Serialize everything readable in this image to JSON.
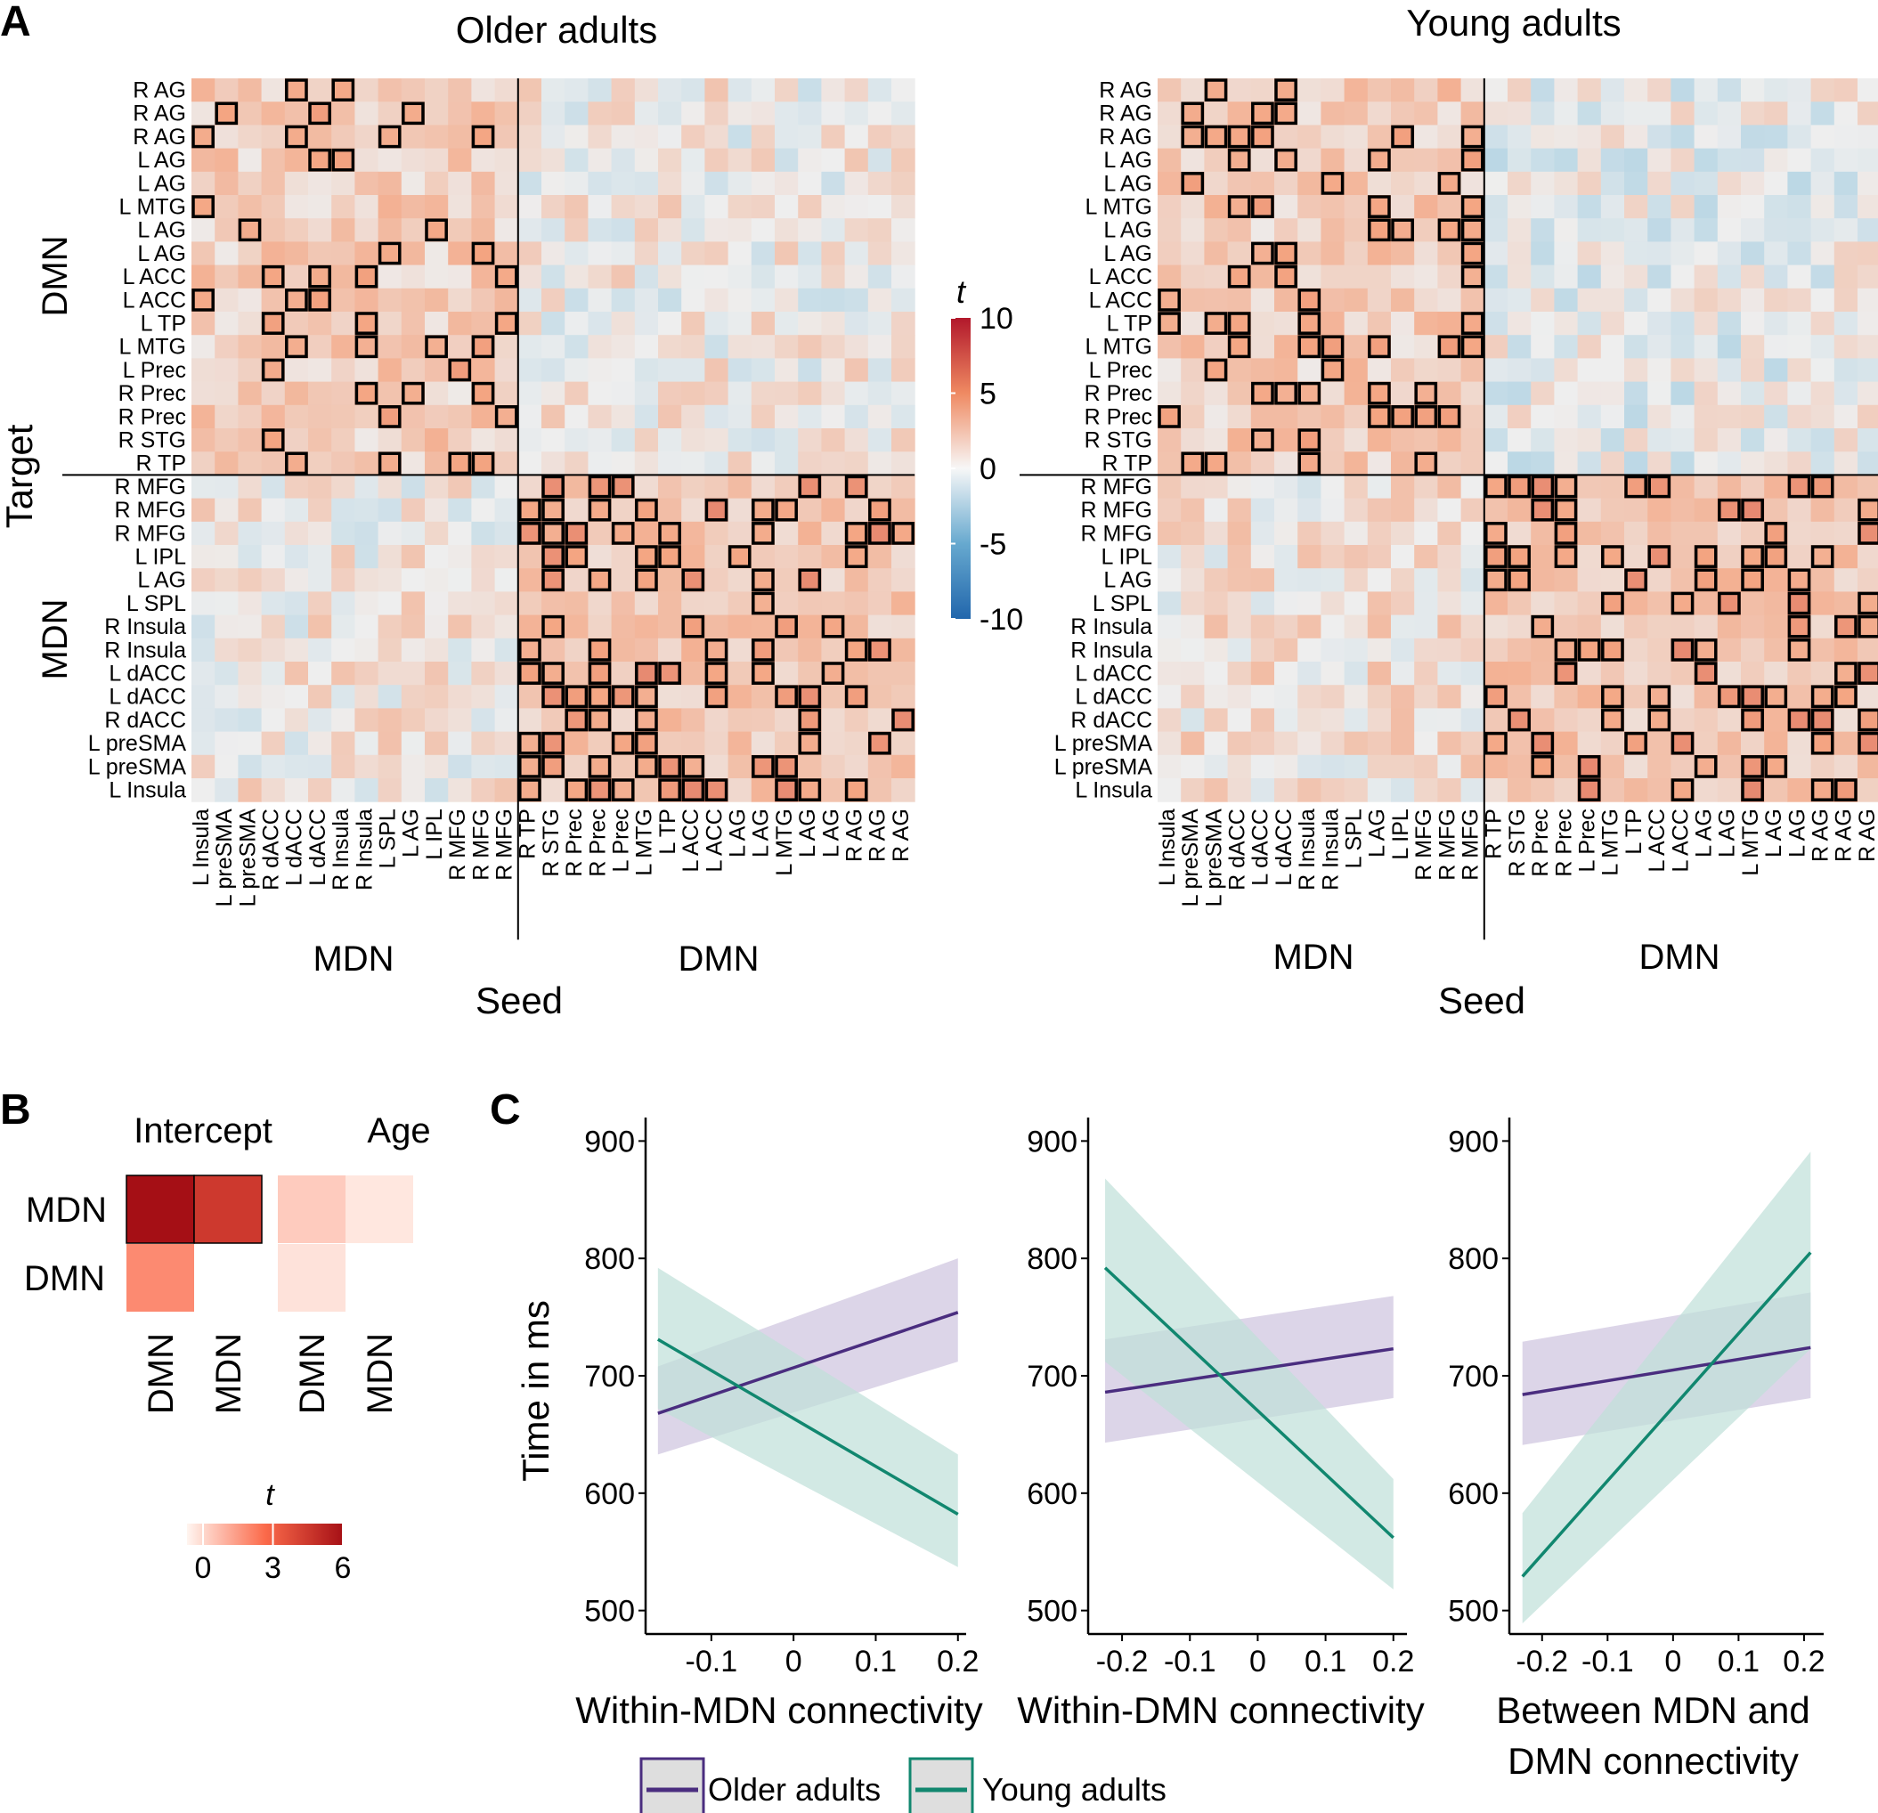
{
  "panel_letters": {
    "a": "A",
    "b": "B",
    "c": "C"
  },
  "colors": {
    "older": "#4a2d7f",
    "young": "#11876f",
    "older_band": "#cdc3de",
    "young_band": "#bfe0d8",
    "neg": "#2d6fb5",
    "neutral": "#dfdfdf",
    "pos": "#b51f27"
  },
  "chart_data": [
    {
      "type": "heatmap",
      "id": "matrix-older",
      "title": "Older adults",
      "xlabel": "Seed",
      "ylabel": "Target",
      "network_labels": {
        "row_top": "DMN",
        "row_bottom": "MDN",
        "col_left": "MDN",
        "col_right": "DMN"
      },
      "row_labels": [
        "R AG",
        "R AG",
        "R AG",
        "L AG",
        "L AG",
        "L MTG",
        "L AG",
        "L AG",
        "L ACC",
        "L ACC",
        "L TP",
        "L MTG",
        "L Prec",
        "R Prec",
        "R Prec",
        "R STG",
        "R TP",
        "R MFG",
        "R MFG",
        "R MFG",
        "L IPL",
        "L AG",
        "L SPL",
        "R Insula",
        "R Insula",
        "L dACC",
        "L dACC",
        "R dACC",
        "L preSMA",
        "L preSMA",
        "L Insula"
      ],
      "col_labels": [
        "L Insula",
        "L preSMA",
        "L preSMA",
        "R dACC",
        "L dACC",
        "L dACC",
        "R Insula",
        "R Insula",
        "L SPL",
        "L AG",
        "L IPL",
        "R MFG",
        "R MFG",
        "R MFG",
        "R TP",
        "R STG",
        "R Prec",
        "R Prec",
        "L Prec",
        "L MTG",
        "L TP",
        "L ACC",
        "L ACC",
        "L AG",
        "L AG",
        "L MTG",
        "L AG",
        "L AG",
        "R AG",
        "R AG",
        "R AG"
      ],
      "split_row": 17,
      "split_col": 14,
      "legend": {
        "title": "t",
        "ticks": [
          10,
          5,
          0,
          -5,
          -10
        ]
      }
    },
    {
      "type": "heatmap",
      "id": "matrix-young",
      "title": "Young adults",
      "xlabel": "Seed",
      "network_labels": {
        "col_left": "MDN",
        "col_right": "DMN"
      },
      "row_labels": [
        "R AG",
        "R AG",
        "R AG",
        "L AG",
        "L AG",
        "L MTG",
        "L AG",
        "L AG",
        "L ACC",
        "L ACC",
        "L TP",
        "L MTG",
        "L Prec",
        "R Prec",
        "R Prec",
        "R STG",
        "R TP",
        "R MFG",
        "R MFG",
        "R MFG",
        "L IPL",
        "L AG",
        "L SPL",
        "R Insula",
        "R Insula",
        "L dACC",
        "L dACC",
        "R dACC",
        "L preSMA",
        "L preSMA",
        "L Insula"
      ],
      "col_labels": [
        "L Insula",
        "L preSMA",
        "L preSMA",
        "R dACC",
        "L dACC",
        "L dACC",
        "R Insula",
        "R Insula",
        "L SPL",
        "L AG",
        "L IPL",
        "R MFG",
        "R MFG",
        "R MFG",
        "R TP",
        "R STG",
        "R Prec",
        "R Prec",
        "L Prec",
        "L MTG",
        "L TP",
        "L ACC",
        "L ACC",
        "L AG",
        "L AG",
        "L MTG",
        "L AG",
        "L AG",
        "R AG",
        "R AG",
        "R AG"
      ],
      "split_row": 17,
      "split_col": 14
    },
    {
      "type": "heatmap",
      "id": "network-t",
      "group_labels": [
        "Intercept",
        "Age"
      ],
      "row_labels": [
        "MDN",
        "DMN"
      ],
      "col_labels": [
        "DMN",
        "MDN",
        "DMN",
        "MDN"
      ],
      "cells": [
        {
          "row": 0,
          "col": 0,
          "t": 6.0,
          "sig": true
        },
        {
          "row": 0,
          "col": 1,
          "t": 4.6,
          "sig": true
        },
        {
          "row": 0,
          "col": 2,
          "t": 0.9,
          "sig": false
        },
        {
          "row": 0,
          "col": 3,
          "t": 0.3,
          "sig": false
        },
        {
          "row": 1,
          "col": 0,
          "t": 2.3,
          "sig": false
        },
        {
          "row": 1,
          "col": 2,
          "t": 0.4,
          "sig": false
        }
      ],
      "legend": {
        "title": "t",
        "ticks": [
          0,
          3,
          6
        ]
      }
    },
    {
      "type": "line",
      "id": "within-mdn",
      "xlabel": "Within-MDN connectivity",
      "ylabel": "Time in ms",
      "xlim": [
        -0.18,
        0.21
      ],
      "ylim": [
        480,
        920
      ],
      "xticks": [
        -0.1,
        0,
        0.1,
        0.2
      ],
      "xtick_labels": [
        "-0.1",
        "0",
        "0.1",
        "0.2"
      ],
      "yticks": [
        500,
        600,
        700,
        800,
        900
      ],
      "series": [
        {
          "name": "Older adults",
          "x": [
            -0.165,
            0.2
          ],
          "y": [
            668,
            754
          ],
          "lower": [
            633,
            712
          ],
          "upper": [
            708,
            800
          ]
        },
        {
          "name": "Young adults",
          "x": [
            -0.165,
            0.2
          ],
          "y": [
            731,
            582
          ],
          "lower": [
            672,
            537
          ],
          "upper": [
            792,
            633
          ]
        }
      ]
    },
    {
      "type": "line",
      "id": "within-dmn",
      "xlabel": "Within-DMN connectivity",
      "xlim": [
        -0.25,
        0.22
      ],
      "ylim": [
        480,
        920
      ],
      "xticks": [
        -0.2,
        -0.1,
        0,
        0.1,
        0.2
      ],
      "xtick_labels": [
        "-0.2",
        "-0.1",
        "0",
        "0.1",
        "0.2"
      ],
      "yticks": [
        500,
        600,
        700,
        800,
        900
      ],
      "series": [
        {
          "name": "Older adults",
          "x": [
            -0.225,
            0.2
          ],
          "y": [
            686,
            723
          ],
          "lower": [
            643,
            681
          ],
          "upper": [
            731,
            768
          ]
        },
        {
          "name": "Young adults",
          "x": [
            -0.225,
            0.2
          ],
          "y": [
            792,
            562
          ],
          "lower": [
            712,
            518
          ],
          "upper": [
            868,
            612
          ]
        }
      ]
    },
    {
      "type": "line",
      "id": "between",
      "xlabel": "Between MDN and DMN connectivity",
      "xlim": [
        -0.25,
        0.23
      ],
      "ylim": [
        480,
        920
      ],
      "xticks": [
        -0.2,
        -0.1,
        0,
        0.1,
        0.2
      ],
      "xtick_labels": [
        "-0.2",
        "-0.1",
        "0",
        "0.1",
        "0.2"
      ],
      "yticks": [
        500,
        600,
        700,
        800,
        900
      ],
      "series": [
        {
          "name": "Older adults",
          "x": [
            -0.23,
            0.21
          ],
          "y": [
            684,
            724
          ],
          "lower": [
            641,
            681
          ],
          "upper": [
            729,
            771
          ]
        },
        {
          "name": "Young adults",
          "x": [
            -0.23,
            0.21
          ],
          "y": [
            529,
            805
          ],
          "lower": [
            489,
            723
          ],
          "upper": [
            583,
            891
          ]
        }
      ]
    }
  ],
  "legend": {
    "items": [
      "Older adults",
      "Young adults"
    ]
  }
}
